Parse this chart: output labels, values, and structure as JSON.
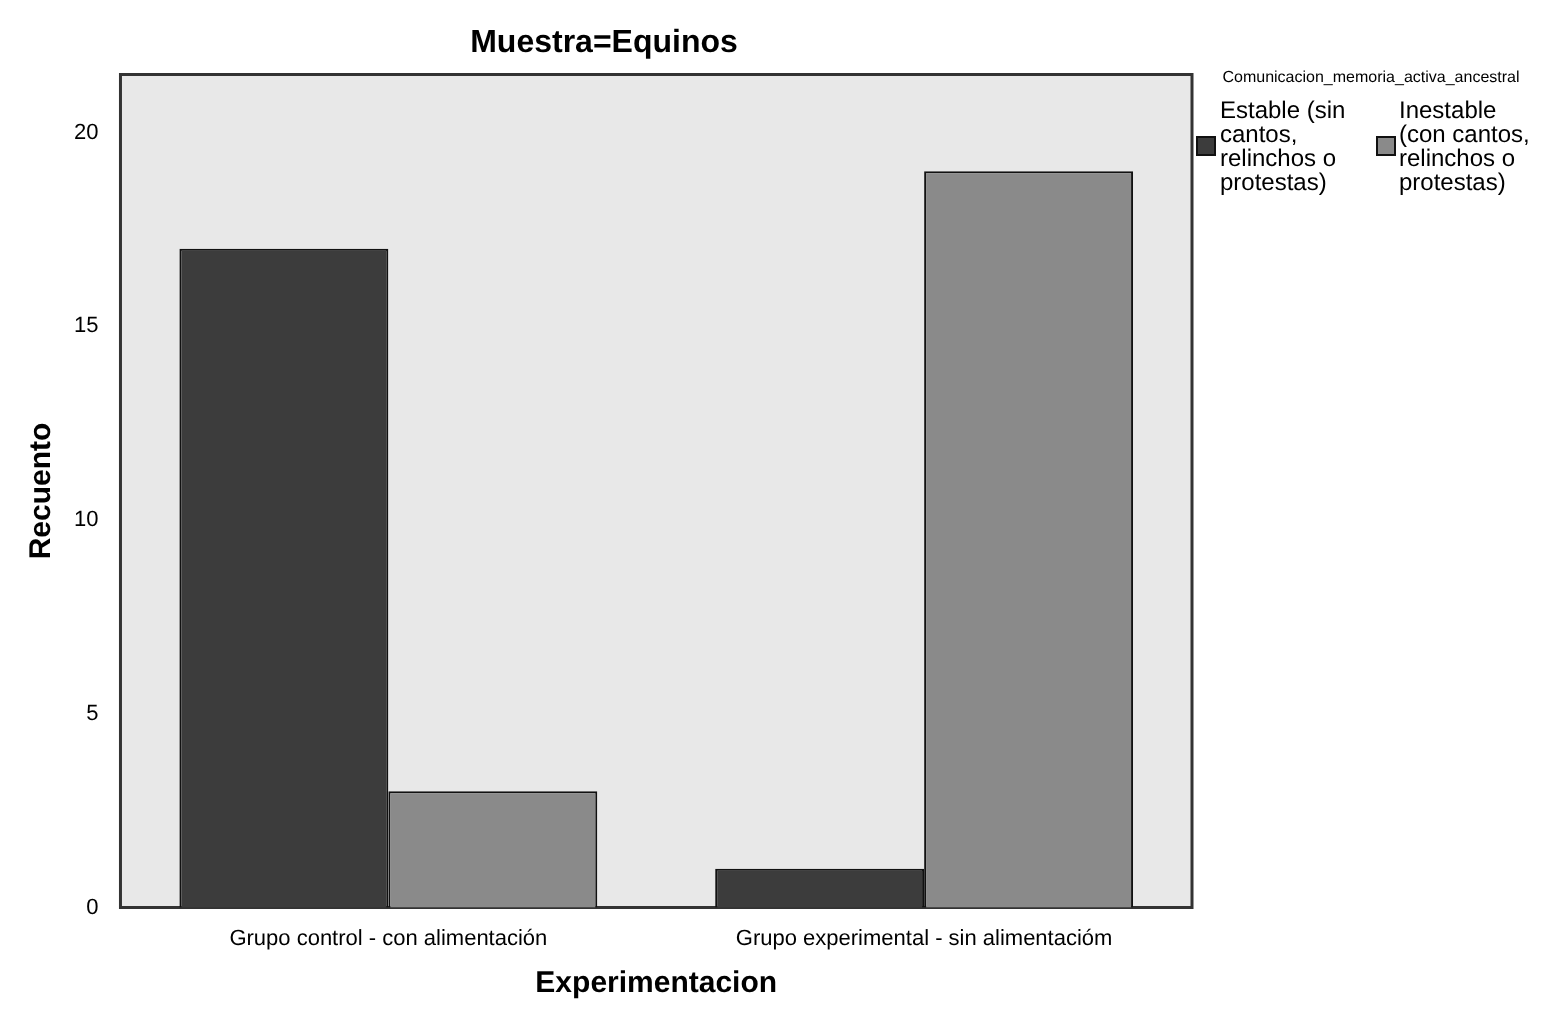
{
  "chart_data": {
    "type": "bar",
    "title": "Muestra=Equinos",
    "xlabel": "Experimentacion",
    "ylabel": "Recuento",
    "legend_title": "Comunicacion_memoria_activa_ancestral",
    "categories": [
      "Grupo control - con alimentación",
      "Grupo experimental - sin alimentacióm"
    ],
    "series": [
      {
        "name": "Estable (sin cantos, relinchos o protestas)",
        "color": "#3c3c3c",
        "values": [
          17,
          1
        ]
      },
      {
        "name": "Inestable (con cantos, relinchos o protestas)",
        "color": "#8a8a8a",
        "values": [
          3,
          19
        ]
      }
    ],
    "ylim": [
      0,
      21.5
    ],
    "yticks": [
      0,
      5,
      10,
      15,
      20
    ],
    "grid": false,
    "legend": "top right"
  }
}
